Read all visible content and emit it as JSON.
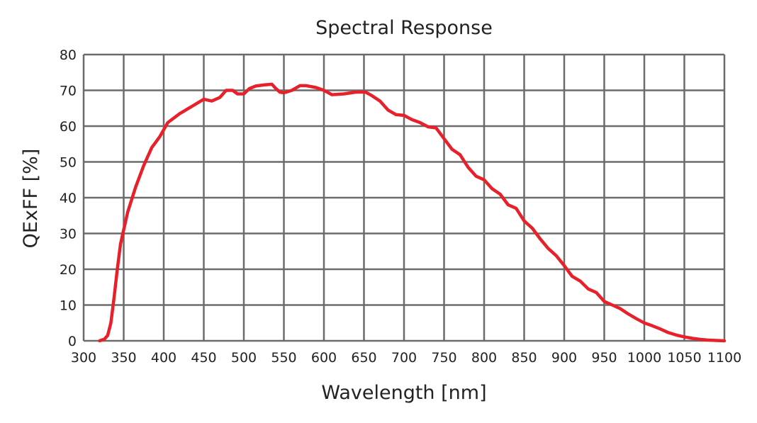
{
  "chart_data": {
    "type": "line",
    "title": "Spectral Response",
    "xlabel": "Wavelength [nm]",
    "ylabel": "QExFF [%]",
    "xlim": [
      300,
      1100
    ],
    "ylim": [
      0,
      80
    ],
    "x_ticks": [
      300,
      350,
      400,
      450,
      500,
      550,
      600,
      650,
      700,
      750,
      800,
      850,
      900,
      950,
      1000,
      1050,
      1100
    ],
    "y_ticks": [
      0,
      10,
      20,
      30,
      40,
      50,
      60,
      70,
      80
    ],
    "grid": true,
    "color": "#e8202a",
    "series": [
      {
        "x": [
          320,
          326,
          330,
          334,
          338,
          342,
          346,
          348,
          355,
          365,
          375,
          385,
          395,
          405,
          420,
          435,
          450,
          460,
          470,
          478,
          486,
          492,
          500,
          507,
          515,
          525,
          535,
          540,
          545,
          550,
          560,
          570,
          578,
          590,
          600,
          610,
          625,
          640,
          652,
          660,
          670,
          680,
          690,
          700,
          710,
          720,
          730,
          740,
          750,
          760,
          770,
          780,
          790,
          800,
          810,
          820,
          830,
          840,
          850,
          860,
          870,
          880,
          890,
          900,
          910,
          920,
          930,
          940,
          950,
          960,
          970,
          980,
          990,
          1000,
          1010,
          1020,
          1030,
          1040,
          1050,
          1060,
          1070,
          1080,
          1090,
          1100
        ],
        "y": [
          0,
          0.5,
          1.5,
          5,
          12,
          20,
          27,
          29,
          36,
          43,
          49,
          54,
          57,
          61,
          63.5,
          65.5,
          67.5,
          67,
          68,
          70,
          70,
          69,
          69,
          70.5,
          71.2,
          71.5,
          71.7,
          70.5,
          69.5,
          69.3,
          70,
          71.3,
          71.3,
          70.8,
          70,
          68.8,
          69,
          69.5,
          69.5,
          68.5,
          67,
          64.5,
          63.2,
          63,
          61.8,
          61,
          59.8,
          59.5,
          56.5,
          53.5,
          52,
          48.5,
          46,
          45,
          42.5,
          41,
          38,
          37,
          33.5,
          31.5,
          28.5,
          25.8,
          23.8,
          21,
          18,
          16.7,
          14.5,
          13.5,
          11,
          10,
          9,
          7.5,
          6.2,
          5,
          4.2,
          3.3,
          2.3,
          1.6,
          1.1,
          0.7,
          0.4,
          0.2,
          0.1,
          0
        ]
      }
    ]
  }
}
